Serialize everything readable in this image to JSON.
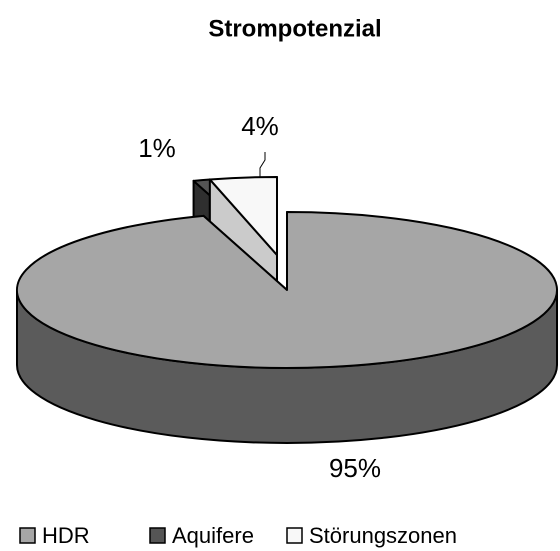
{
  "chart_data": {
    "type": "pie3d",
    "title": "Strompotenzial",
    "categories": [
      "HDR",
      "Aquifere",
      "Störungszonen"
    ],
    "values": [
      95,
      1,
      4
    ],
    "value_labels": [
      "95%",
      "1%",
      "4%"
    ],
    "colors": [
      "#a6a6a6",
      "#555555",
      "#f8f8f8"
    ],
    "exploded": [
      false,
      true,
      true
    ],
    "legend": "bottom"
  }
}
